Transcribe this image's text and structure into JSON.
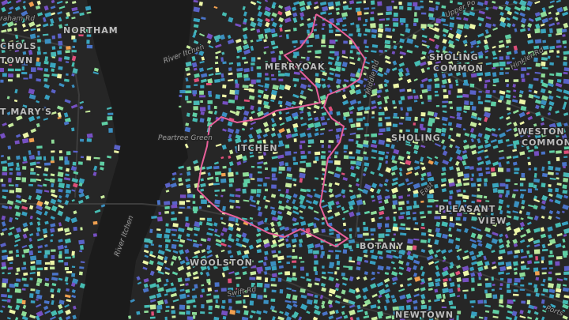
{
  "map": {
    "labels": [
      {
        "text": "raham Rd"
      },
      {
        "text": "NORTHAM"
      },
      {
        "text": "CHOLS"
      },
      {
        "text": "TOWN"
      },
      {
        "text": "River Itchen"
      },
      {
        "text": "T MARY'S"
      },
      {
        "text": "MERRYOAK"
      },
      {
        "text": "Middle Rd"
      },
      {
        "text": "Upper Po"
      },
      {
        "text": "SHOLING"
      },
      {
        "text": "COMMON"
      },
      {
        "text": "Hinkler Rd"
      },
      {
        "text": "Peartree Green"
      },
      {
        "text": "ITCHEN"
      },
      {
        "text": "SHOLING"
      },
      {
        "text": "WESTON"
      },
      {
        "text": "COMMON"
      },
      {
        "text": "PLEASANT"
      },
      {
        "text": "VIEW"
      },
      {
        "text": "River Itchen"
      },
      {
        "text": "BOTANY"
      },
      {
        "text": "WOOLSTON"
      },
      {
        "text": "Swift Rd"
      },
      {
        "text": "NEWTOWN"
      },
      {
        "text": "Ports"
      },
      {
        "text": "East"
      }
    ]
  }
}
